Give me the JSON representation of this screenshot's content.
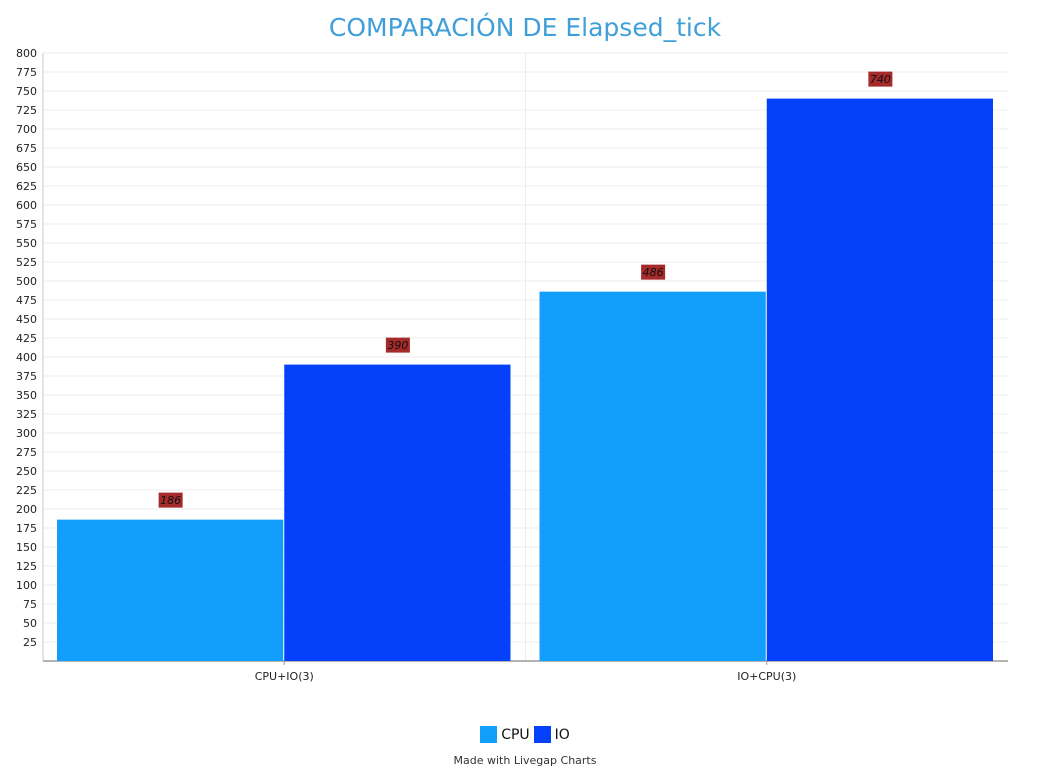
{
  "chart_data": {
    "type": "bar",
    "title": "COMPARACIÓN DE Elapsed_tick",
    "categories": [
      "CPU+IO(3)",
      "IO+CPU(3)"
    ],
    "series": [
      {
        "name": "CPU",
        "values": [
          186,
          486
        ],
        "color": "#129ffb"
      },
      {
        "name": "IO",
        "values": [
          390,
          740
        ],
        "color": "#0540fb"
      }
    ],
    "ylim": [
      0,
      800
    ],
    "ytick_step": 25,
    "xlabel": "",
    "ylabel": "",
    "grid": true,
    "legend_position": "bottom",
    "data_label_color": "#a52a2a"
  },
  "footer": {
    "credit": "Made with Livegap Charts"
  }
}
